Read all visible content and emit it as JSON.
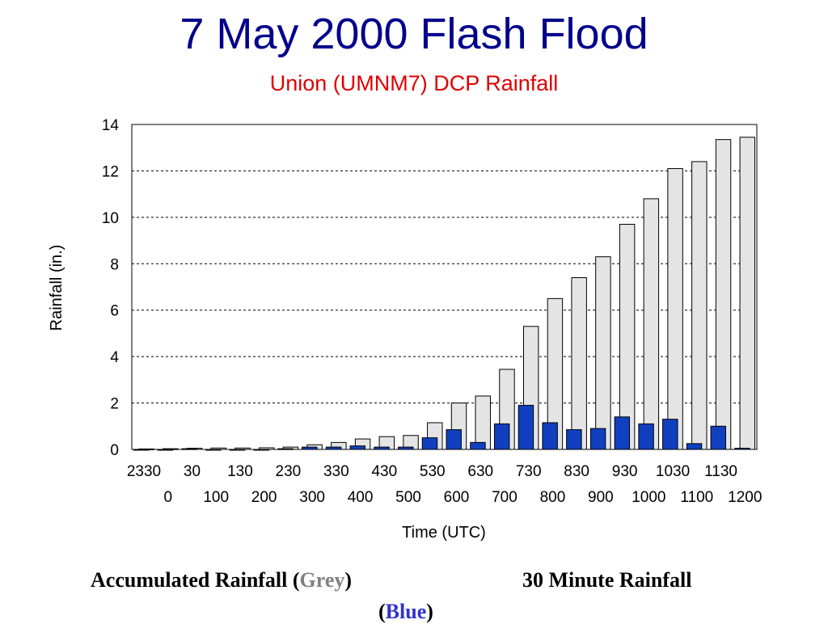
{
  "chart_data": {
    "type": "bar",
    "title": "7 May 2000 Flash Flood",
    "subtitle": "Union (UMNM7) DCP Rainfall",
    "xlabel": "Time (UTC)",
    "ylabel": "Rainfall (in.)",
    "ylim": [
      0,
      14
    ],
    "yticks": [
      0,
      2,
      4,
      6,
      8,
      10,
      12,
      14
    ],
    "grid": true,
    "categories": [
      "2330",
      "0",
      "30",
      "100",
      "130",
      "200",
      "230",
      "300",
      "330",
      "400",
      "430",
      "500",
      "530",
      "600",
      "630",
      "700",
      "730",
      "800",
      "830",
      "900",
      "930",
      "1000",
      "1030",
      "1100",
      "1130",
      "1200"
    ],
    "series": [
      {
        "name": "Accumulated Rainfall",
        "color": "#e4e4e4",
        "values": [
          0.02,
          0.03,
          0.05,
          0.06,
          0.06,
          0.07,
          0.1,
          0.2,
          0.3,
          0.45,
          0.55,
          0.6,
          1.15,
          2.0,
          2.3,
          3.45,
          5.3,
          6.5,
          7.4,
          8.3,
          9.7,
          10.8,
          12.1,
          12.4,
          13.35,
          13.45
        ]
      },
      {
        "name": "30 Minute Rainfall",
        "color": "#1040c0",
        "values": [
          0.0,
          0.0,
          0.03,
          0.0,
          0.0,
          0.0,
          0.03,
          0.1,
          0.1,
          0.15,
          0.1,
          0.1,
          0.5,
          0.85,
          0.3,
          1.1,
          1.9,
          1.15,
          0.85,
          0.9,
          1.4,
          1.1,
          1.3,
          0.25,
          1.0,
          0.05
        ]
      }
    ]
  },
  "caption": {
    "left_prefix": "Accumulated Rainfall (",
    "left_color_word": "Grey",
    "left_suffix": ")",
    "right_text": "30 Minute Rainfall",
    "blue_prefix": "(",
    "blue_color_word": "Blue",
    "blue_suffix": ")",
    "grey_color": "#808080",
    "blue_color": "#3333cc"
  }
}
